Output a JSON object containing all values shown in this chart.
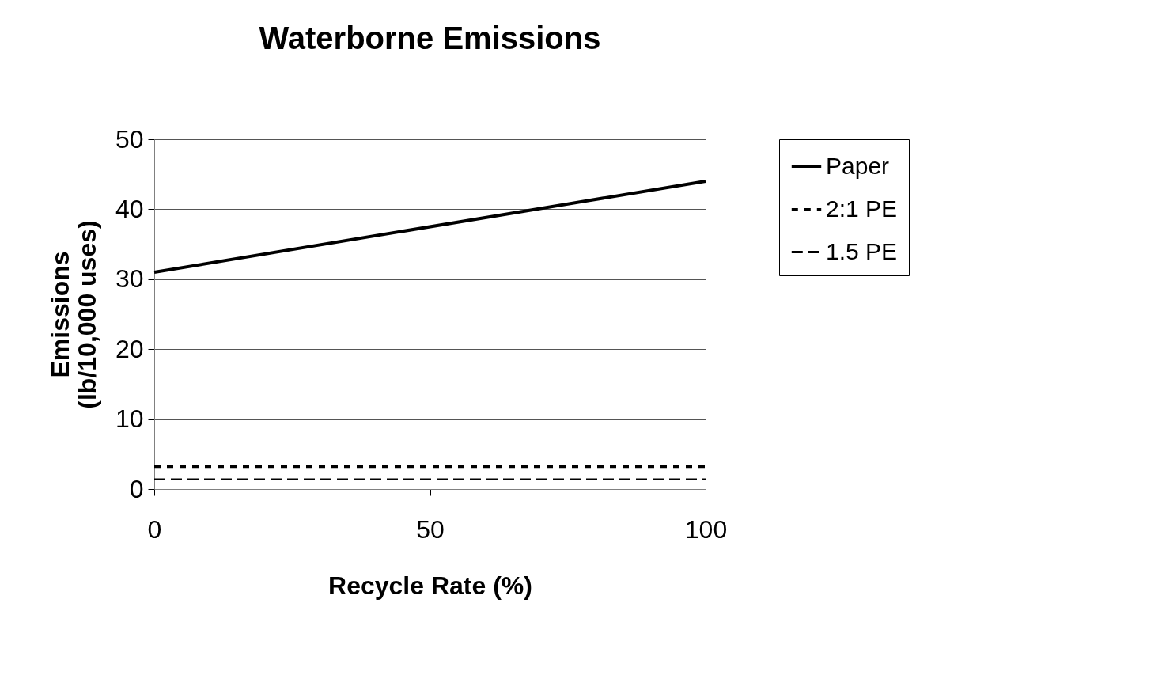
{
  "chart_data": {
    "type": "line",
    "title": "Waterborne Emissions",
    "xlabel": "Recycle Rate (%)",
    "ylabel": "Emissions\n(lb/10,000 uses)",
    "x": [
      0,
      100
    ],
    "series": [
      {
        "name": "Paper",
        "color": "#000000",
        "line_style": "solid",
        "values": [
          31.0,
          44.0
        ]
      },
      {
        "name": "2:1 PE",
        "color": "#000000",
        "line_style": "dotted",
        "values": [
          3.2,
          3.2
        ]
      },
      {
        "name": "1.5 PE",
        "color": "#000000",
        "line_style": "dashed",
        "values": [
          1.4,
          1.4
        ]
      }
    ],
    "xlim": [
      0,
      100
    ],
    "xticks": [
      0,
      50,
      100
    ],
    "ylim": [
      0,
      50
    ],
    "yticks": [
      0,
      10,
      20,
      30,
      40,
      50
    ],
    "grid": "y",
    "legend": "right",
    "marker": "none"
  }
}
